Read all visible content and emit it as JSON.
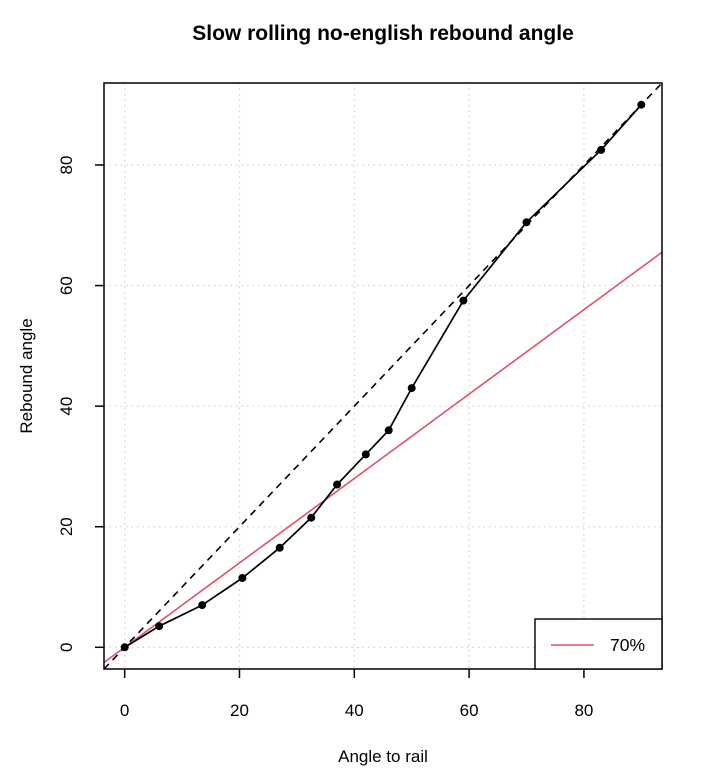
{
  "figure": {
    "title": "Slow rolling no-english rebound angle",
    "xlabel": "Angle to rail",
    "ylabel": "Rebound angle"
  },
  "chart_data": {
    "type": "line",
    "title": "Slow rolling no-english rebound angle",
    "xlabel": "Angle to rail",
    "ylabel": "Rebound angle",
    "xlim": [
      -3.6,
      93.6
    ],
    "ylim": [
      -3.6,
      93.6
    ],
    "xticks": [
      0,
      20,
      40,
      60,
      80
    ],
    "yticks": [
      0,
      20,
      40,
      60,
      80
    ],
    "grid": {
      "shown": true,
      "style": "dotted",
      "color": "#d3d3d3",
      "at": "ticks"
    },
    "series": [
      {
        "name": "measured-rebound-angle",
        "style": "line-with-points",
        "color": "#000000",
        "points": [
          [
            0,
            0
          ],
          [
            6,
            3.5
          ],
          [
            13.5,
            7
          ],
          [
            20.5,
            11.5
          ],
          [
            27,
            16.5
          ],
          [
            32.5,
            21.5
          ],
          [
            37,
            27
          ],
          [
            42,
            32
          ],
          [
            46,
            36
          ],
          [
            50,
            43
          ],
          [
            59,
            57.5
          ],
          [
            70,
            70.5
          ],
          [
            83,
            82.5
          ],
          [
            90,
            90
          ]
        ]
      }
    ],
    "reference_lines": [
      {
        "name": "equal-angle-diagonal",
        "slope": 1,
        "intercept": 0,
        "style": "dashed",
        "color": "#000000"
      },
      {
        "name": "seventy-percent",
        "slope": 0.7,
        "intercept": 0,
        "style": "solid",
        "color": "#df536b"
      }
    ],
    "legend": {
      "position": "bottom-right",
      "entries": [
        {
          "label": "70%",
          "color": "#df536b",
          "line_style": "solid"
        }
      ]
    }
  },
  "colors": {
    "background": "#ffffff",
    "axis": "#000000",
    "grid": "#d3d3d3",
    "accent_red": "#df536b"
  }
}
